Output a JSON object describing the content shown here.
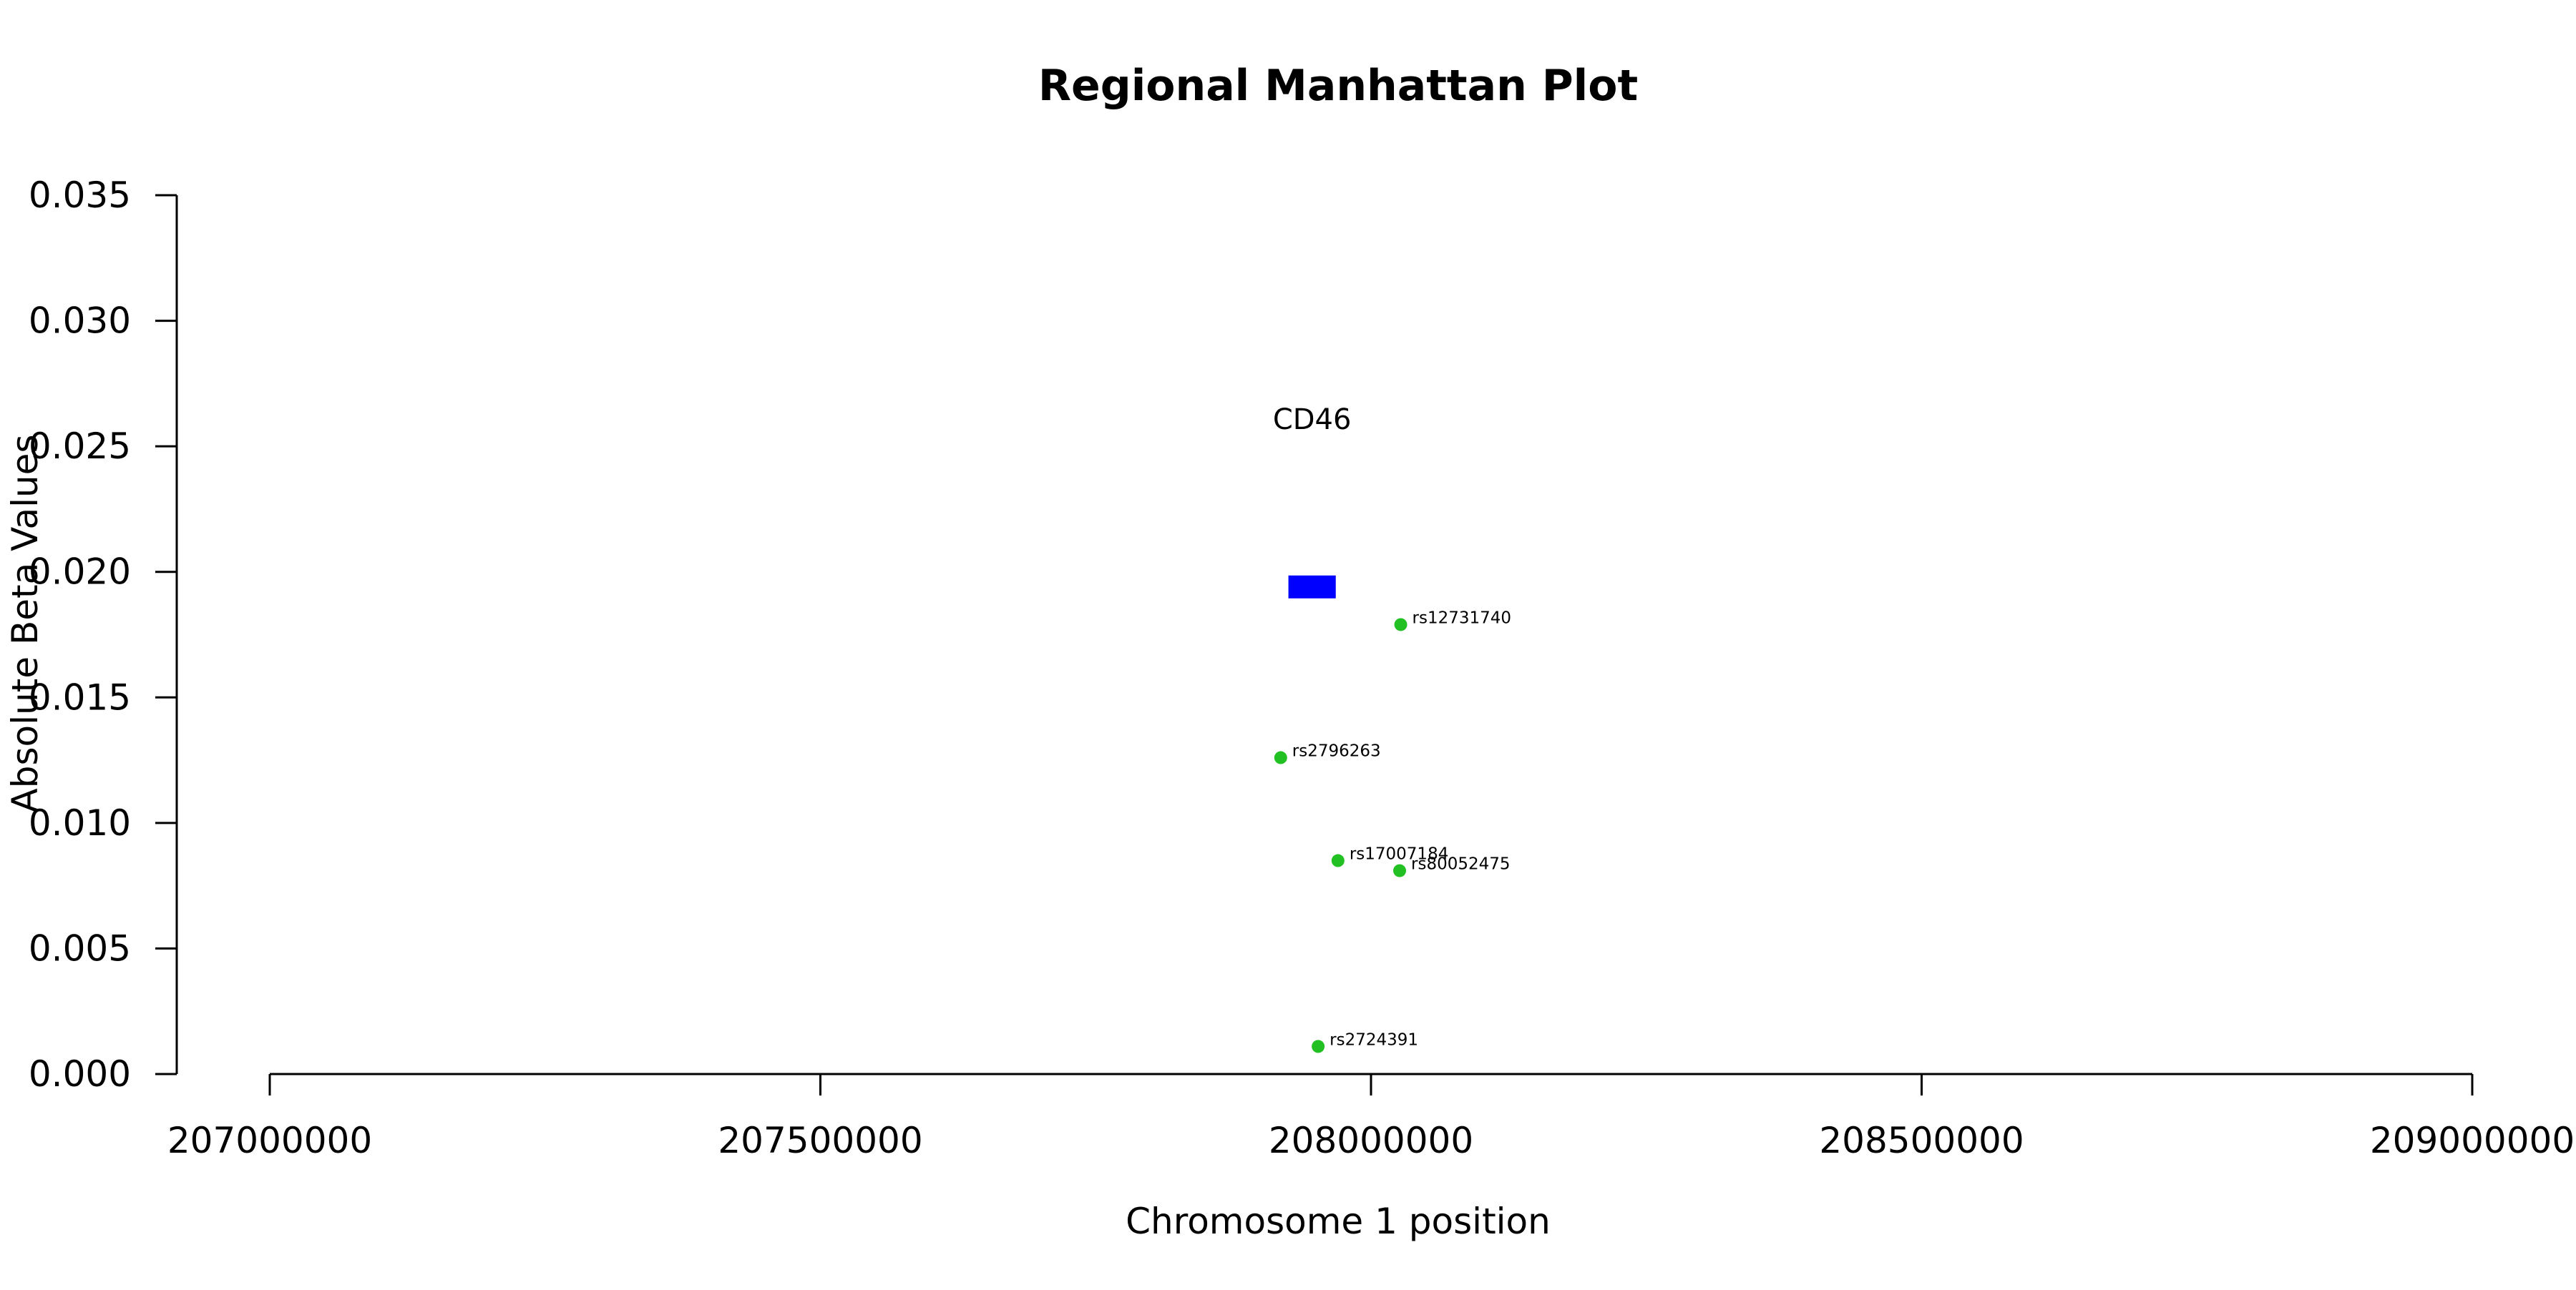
{
  "chart_data": {
    "type": "scatter",
    "title": "Regional Manhattan Plot",
    "xlabel": "Chromosome 1 position",
    "ylabel": "Absolute Beta Values",
    "xlim": [
      207000000,
      209000000
    ],
    "ylim": [
      0,
      0.035
    ],
    "x_ticks": [
      207000000,
      207500000,
      208000000,
      208500000,
      209000000
    ],
    "x_tick_labels": [
      "207000000",
      "207500000",
      "208000000",
      "208500000",
      "209000000"
    ],
    "y_ticks": [
      0,
      0.005,
      0.01,
      0.015,
      0.02,
      0.025,
      0.03,
      0.035
    ],
    "y_tick_labels": [
      "0.000",
      "0.005",
      "0.010",
      "0.015",
      "0.020",
      "0.025",
      "0.030",
      "0.035"
    ],
    "grid": false,
    "legend": "none",
    "point_color": "#22c022",
    "points": [
      {
        "label": "rs12731740",
        "x": 208027000,
        "y": 0.0179
      },
      {
        "label": "rs2796263",
        "x": 207918000,
        "y": 0.0126
      },
      {
        "label": "rs17007184",
        "x": 207970000,
        "y": 0.0085
      },
      {
        "label": "rs80052475",
        "x": 208026000,
        "y": 0.0081
      },
      {
        "label": "rs2724391",
        "x": 207952000,
        "y": 0.0011
      }
    ],
    "gene": {
      "label": "CD46",
      "start": 207925000,
      "end": 207968000,
      "y": 0.0194,
      "color": "#0000ff"
    }
  }
}
